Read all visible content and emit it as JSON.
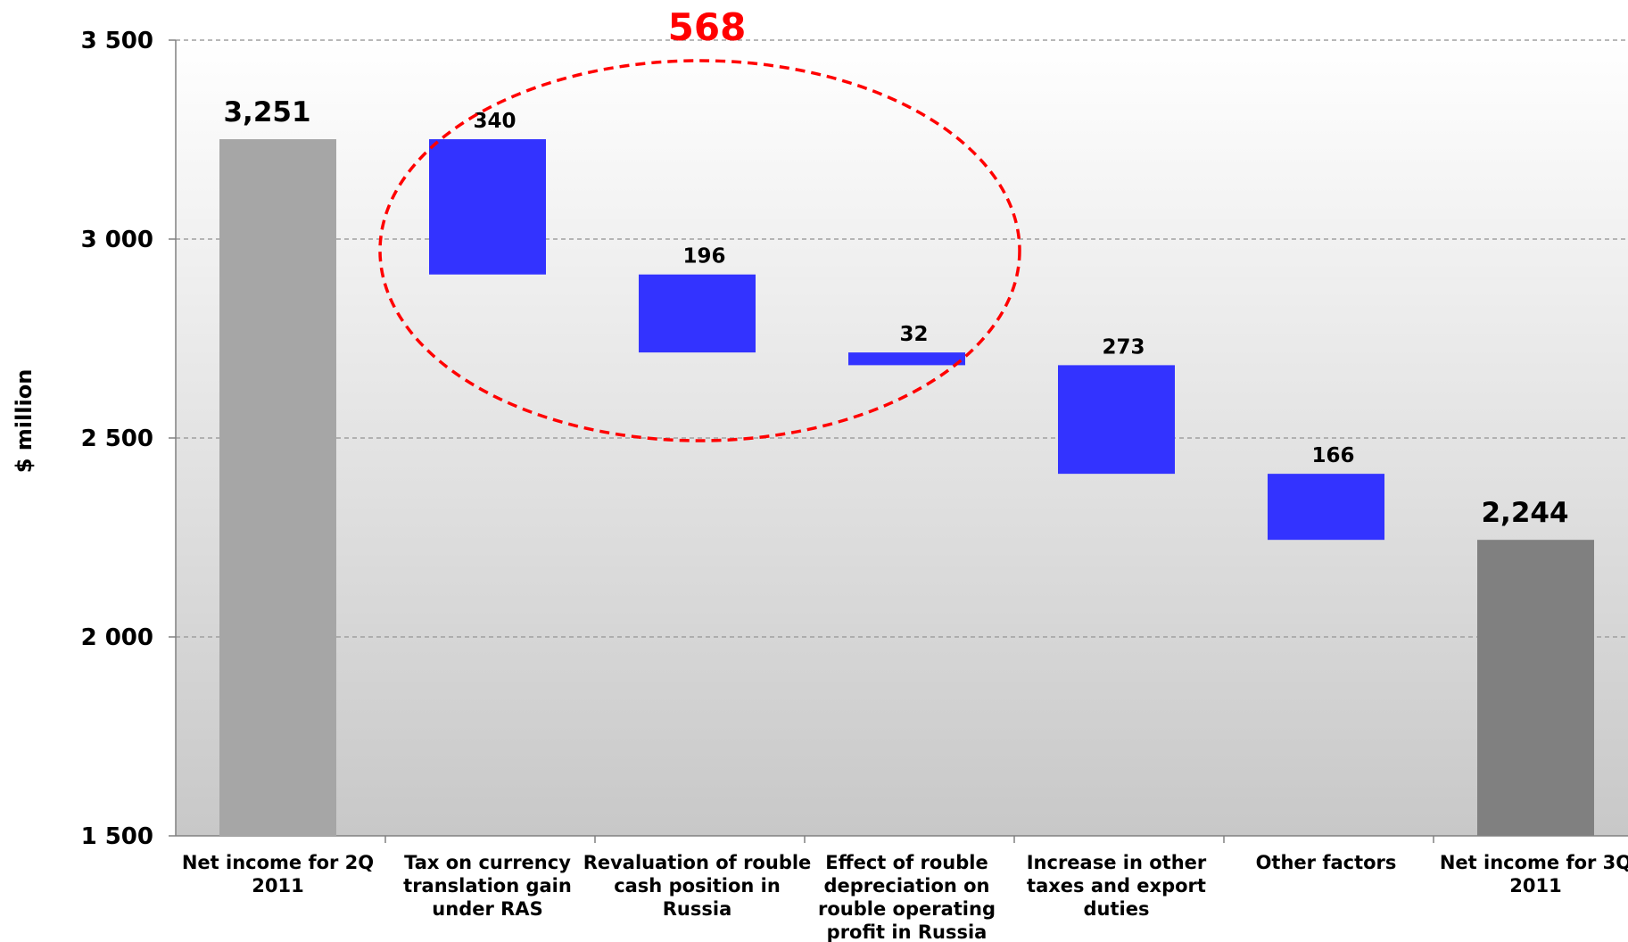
{
  "chart_data": {
    "type": "waterfall",
    "ylabel": "$ million",
    "ylim": [
      1500,
      3500
    ],
    "yticks": [
      1500,
      2000,
      2500,
      3000,
      3500
    ],
    "ytick_labels": [
      "1 500",
      "2 000",
      "2 500",
      "3 000",
      "3 500"
    ],
    "grid": true,
    "categories": [
      "Net income for 2Q 2011",
      "Tax on currency translation gain under RAS",
      "Revaluation of rouble cash position in Russia",
      "Effect of rouble depreciation on rouble operating profit in Russia",
      "Increase in other taxes and export duties",
      "Other factors",
      "Net income for 3Q 2011"
    ],
    "category_lines": [
      [
        "Net income for 2Q",
        "2011"
      ],
      [
        "Tax on currency",
        "translation gain",
        "under RAS"
      ],
      [
        "Revaluation of rouble",
        "cash position in",
        "Russia"
      ],
      [
        "Effect of rouble",
        "depreciation on",
        "rouble operating",
        "profit in Russia"
      ],
      [
        "Increase in other",
        "taxes and export",
        "duties"
      ],
      [
        "Other factors"
      ],
      [
        "Net income for 3Q",
        "2011"
      ]
    ],
    "bars": [
      {
        "kind": "total",
        "value": 3251,
        "label": "3,251",
        "color": "#a6a6a6"
      },
      {
        "kind": "decrease",
        "value": 340,
        "label": "340",
        "color": "#3333ff"
      },
      {
        "kind": "decrease",
        "value": 196,
        "label": "196",
        "color": "#3333ff"
      },
      {
        "kind": "decrease",
        "value": 32,
        "label": "32",
        "color": "#3333ff"
      },
      {
        "kind": "decrease",
        "value": 273,
        "label": "273",
        "color": "#3333ff"
      },
      {
        "kind": "decrease",
        "value": 166,
        "label": "166",
        "color": "#3333ff"
      },
      {
        "kind": "total",
        "value": 2244,
        "label": "2,244",
        "color": "#808080"
      }
    ],
    "annotation": {
      "text": "568",
      "color": "#ff0000",
      "encircles_categories": [
        1,
        2,
        3
      ],
      "style": "dashed ellipse"
    },
    "background_gradient": [
      "#ffffff",
      "#c8c8c8"
    ],
    "gridline_color": "#a0a0a0"
  }
}
